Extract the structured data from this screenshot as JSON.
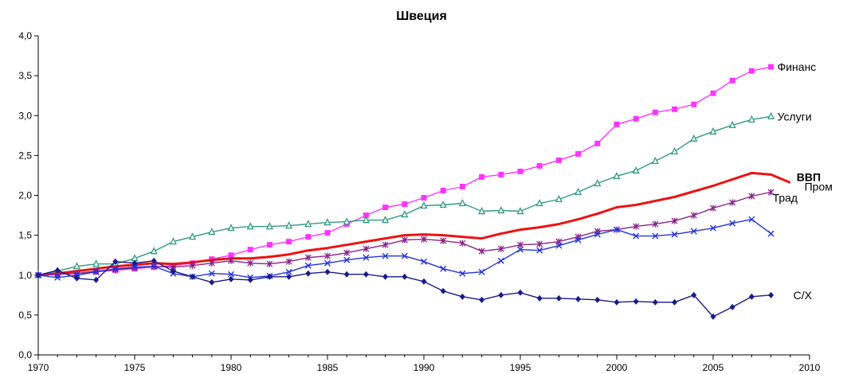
{
  "chart_data": {
    "type": "line",
    "title": "Швеция",
    "xlabel": "",
    "ylabel": "",
    "xlim": [
      1970,
      2010
    ],
    "ylim": [
      0,
      4
    ],
    "x_ticks": [
      "1970",
      "1975",
      "1980",
      "1985",
      "1990",
      "1995",
      "2000",
      "2005",
      "2010"
    ],
    "y_ticks": [
      "0,0",
      "0,5",
      "1,0",
      "1,5",
      "2,0",
      "2,5",
      "3,0",
      "3,5",
      "4,0"
    ],
    "grid": false,
    "legend": "labels at line ends",
    "series": [
      {
        "name": "Финанс",
        "color": "#ff33ff",
        "marker": "square",
        "x": [
          1970,
          1971,
          1972,
          1973,
          1974,
          1975,
          1976,
          1977,
          1978,
          1979,
          1980,
          1981,
          1982,
          1983,
          1984,
          1985,
          1986,
          1987,
          1988,
          1989,
          1990,
          1991,
          1992,
          1993,
          1994,
          1995,
          1996,
          1997,
          1998,
          1999,
          2000,
          2001,
          2002,
          2003,
          2004,
          2005,
          2006,
          2007,
          2008
        ],
        "y": [
          1.0,
          1.01,
          1.02,
          1.04,
          1.06,
          1.08,
          1.1,
          1.12,
          1.15,
          1.2,
          1.25,
          1.32,
          1.38,
          1.42,
          1.48,
          1.53,
          1.64,
          1.75,
          1.85,
          1.89,
          1.97,
          2.06,
          2.11,
          2.23,
          2.26,
          2.3,
          2.37,
          2.44,
          2.52,
          2.65,
          2.89,
          2.96,
          3.04,
          3.08,
          3.14,
          3.28,
          3.44,
          3.56,
          3.61
        ]
      },
      {
        "name": "Услуги",
        "color": "#2e9b82",
        "marker": "triangle",
        "x": [
          1970,
          1971,
          1972,
          1973,
          1974,
          1975,
          1976,
          1977,
          1978,
          1979,
          1980,
          1981,
          1982,
          1983,
          1984,
          1985,
          1986,
          1987,
          1988,
          1989,
          1990,
          1991,
          1992,
          1993,
          1994,
          1995,
          1996,
          1997,
          1998,
          1999,
          2000,
          2001,
          2002,
          2003,
          2004,
          2005,
          2006,
          2007,
          2008
        ],
        "y": [
          1.0,
          1.05,
          1.11,
          1.14,
          1.14,
          1.21,
          1.3,
          1.42,
          1.48,
          1.54,
          1.59,
          1.61,
          1.61,
          1.62,
          1.64,
          1.66,
          1.67,
          1.69,
          1.69,
          1.76,
          1.87,
          1.88,
          1.9,
          1.8,
          1.81,
          1.8,
          1.9,
          1.95,
          2.04,
          2.15,
          2.24,
          2.31,
          2.43,
          2.55,
          2.71,
          2.8,
          2.88,
          2.95,
          2.99
        ]
      },
      {
        "name": "ВВП",
        "color": "#ee1111",
        "marker": "none",
        "x": [
          1970,
          1971,
          1972,
          1973,
          1974,
          1975,
          1976,
          1977,
          1978,
          1979,
          1980,
          1981,
          1982,
          1983,
          1984,
          1985,
          1986,
          1987,
          1988,
          1989,
          1990,
          1991,
          1992,
          1993,
          1994,
          1995,
          1996,
          1997,
          1998,
          1999,
          2000,
          2001,
          2002,
          2003,
          2004,
          2005,
          2006,
          2007,
          2008,
          2009
        ],
        "y": [
          1.0,
          1.02,
          1.05,
          1.08,
          1.11,
          1.13,
          1.15,
          1.14,
          1.16,
          1.19,
          1.21,
          1.21,
          1.23,
          1.26,
          1.31,
          1.34,
          1.38,
          1.42,
          1.46,
          1.5,
          1.51,
          1.5,
          1.48,
          1.46,
          1.52,
          1.57,
          1.6,
          1.64,
          1.7,
          1.77,
          1.85,
          1.88,
          1.93,
          1.98,
          2.05,
          2.12,
          2.2,
          2.28,
          2.26,
          2.16
        ]
      },
      {
        "name": "Трад",
        "color": "#882288",
        "marker": "asterisk",
        "x": [
          1970,
          1971,
          1972,
          1973,
          1974,
          1975,
          1976,
          1977,
          1978,
          1979,
          1980,
          1981,
          1982,
          1983,
          1984,
          1985,
          1986,
          1987,
          1988,
          1989,
          1990,
          1991,
          1992,
          1993,
          1994,
          1995,
          1996,
          1997,
          1998,
          1999,
          2000,
          2001,
          2002,
          2003,
          2004,
          2005,
          2006,
          2007,
          2008
        ],
        "y": [
          1.0,
          1.01,
          1.02,
          1.05,
          1.07,
          1.09,
          1.11,
          1.1,
          1.12,
          1.15,
          1.18,
          1.15,
          1.14,
          1.17,
          1.22,
          1.24,
          1.28,
          1.33,
          1.38,
          1.44,
          1.45,
          1.43,
          1.4,
          1.3,
          1.33,
          1.38,
          1.39,
          1.42,
          1.48,
          1.55,
          1.57,
          1.61,
          1.64,
          1.68,
          1.75,
          1.84,
          1.91,
          1.99,
          2.04
        ]
      },
      {
        "name": "Пром",
        "color": "#2233dd",
        "marker": "x",
        "x": [
          1970,
          1971,
          1972,
          1973,
          1974,
          1975,
          1976,
          1977,
          1978,
          1979,
          1980,
          1981,
          1982,
          1983,
          1984,
          1985,
          1986,
          1987,
          1988,
          1989,
          1990,
          1991,
          1992,
          1993,
          1994,
          1995,
          1996,
          1997,
          1998,
          1999,
          2000,
          2001,
          2002,
          2003,
          2004,
          2005,
          2006,
          2007,
          2008
        ],
        "y": [
          1.0,
          0.97,
          1.0,
          1.04,
          1.08,
          1.1,
          1.11,
          1.02,
          0.98,
          1.02,
          1.01,
          0.97,
          0.99,
          1.04,
          1.12,
          1.15,
          1.19,
          1.22,
          1.24,
          1.24,
          1.17,
          1.08,
          1.02,
          1.04,
          1.18,
          1.32,
          1.31,
          1.37,
          1.44,
          1.51,
          1.57,
          1.49,
          1.49,
          1.51,
          1.55,
          1.59,
          1.65,
          1.7,
          1.52
        ]
      },
      {
        "name": "С/Х",
        "color": "#1a1a8c",
        "marker": "diamond",
        "x": [
          1970,
          1971,
          1972,
          1973,
          1974,
          1975,
          1976,
          1977,
          1978,
          1979,
          1980,
          1981,
          1982,
          1983,
          1984,
          1985,
          1986,
          1987,
          1988,
          1989,
          1990,
          1991,
          1992,
          1993,
          1994,
          1995,
          1996,
          1997,
          1998,
          1999,
          2000,
          2001,
          2002,
          2003,
          2004,
          2005,
          2006,
          2007,
          2008
        ],
        "y": [
          1.0,
          1.06,
          0.96,
          0.94,
          1.17,
          1.15,
          1.18,
          1.05,
          0.98,
          0.91,
          0.95,
          0.94,
          0.98,
          0.98,
          1.02,
          1.04,
          1.01,
          1.01,
          0.98,
          0.98,
          0.92,
          0.8,
          0.73,
          0.69,
          0.75,
          0.78,
          0.71,
          0.71,
          0.7,
          0.69,
          0.66,
          0.67,
          0.66,
          0.66,
          0.75,
          0.48,
          0.6,
          0.73,
          0.75
        ]
      }
    ]
  }
}
